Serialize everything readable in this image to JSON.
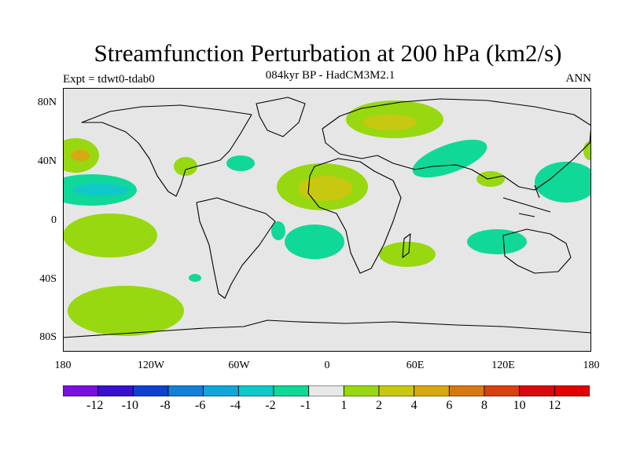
{
  "title": "Streamfunction Perturbation at 200 hPa (km2/s)",
  "subtitle": "084kyr BP - HadCM3M2.1",
  "experiment": "Expt = tdwt0-tdab0",
  "season": "ANN",
  "lat_labels": [
    "80N",
    "40N",
    "0",
    "40S",
    "80S"
  ],
  "lon_labels": [
    "180",
    "120W",
    "60W",
    "0",
    "60E",
    "120E",
    "180"
  ],
  "colorbar": {
    "labels": [
      "-12",
      "-10",
      "-8",
      "-6",
      "-4",
      "-2",
      "-1",
      "1",
      "2",
      "4",
      "6",
      "8",
      "10",
      "12"
    ],
    "colors": [
      "#7a10e0",
      "#3a10d0",
      "#1040d0",
      "#1080d8",
      "#10a8d8",
      "#10c8c8",
      "#10d898",
      "#e8e8e8",
      "#98d810",
      "#c8c810",
      "#d8a810",
      "#d87810",
      "#d84010",
      "#d80a10",
      "#e00000"
    ]
  },
  "ocean_color": "#e6e6e6"
}
